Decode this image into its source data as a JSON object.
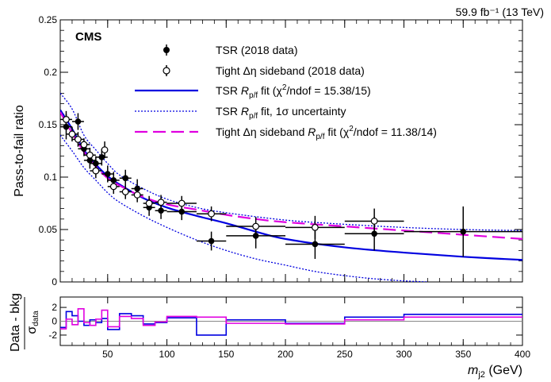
{
  "header": {
    "experiment": "CMS",
    "lumi": "59.9 fb⁻¹ (13 TeV)"
  },
  "colors": {
    "tsr_data": "#000000",
    "tsr_fit": "#0000e0",
    "sideband_fit": "#e000e0"
  },
  "chart_data": [
    {
      "type": "scatter",
      "xlabel": "m_j2 (GeV)",
      "ylabel": "Pass-to-fail ratio",
      "xlim": [
        10,
        400
      ],
      "ylim": [
        0,
        0.25
      ],
      "xticks": [
        50,
        100,
        150,
        200,
        250,
        300,
        350,
        400
      ],
      "yticks": [
        0,
        0.05,
        0.1,
        0.15,
        0.2,
        0.25
      ],
      "legend": {
        "placement": "top-right",
        "entries": [
          {
            "key": "tsr",
            "label": "TSR (2018 data)"
          },
          {
            "key": "sideband",
            "label": "Tight Δη sideband (2018 data)"
          },
          {
            "key": "tsr_fit",
            "label": "TSR R_p/f fit (χ²/ndof = 15.38/15)"
          },
          {
            "key": "tsr_unc",
            "label": "TSR R_p/f fit, 1σ uncertainty"
          },
          {
            "key": "sb_fit",
            "label": "Tight Δη sideband R_p/f fit (χ²/ndof = 11.38/14)"
          }
        ]
      },
      "series": [
        {
          "key": "tsr",
          "name": "TSR (2018 data)",
          "marker": "filled-circle",
          "points": [
            {
              "x": 15,
              "xerr": 5,
              "y": 0.148,
              "yerr": 0.012
            },
            {
              "x": 25,
              "xerr": 5,
              "y": 0.153,
              "yerr": 0.008
            },
            {
              "x": 30,
              "xerr": 5,
              "y": 0.127,
              "yerr": 0.007
            },
            {
              "x": 35,
              "xerr": 5,
              "y": 0.116,
              "yerr": 0.008
            },
            {
              "x": 40,
              "xerr": 5,
              "y": 0.113,
              "yerr": 0.007
            },
            {
              "x": 45,
              "xerr": 5,
              "y": 0.119,
              "yerr": 0.008
            },
            {
              "x": 50,
              "xerr": 5,
              "y": 0.103,
              "yerr": 0.008
            },
            {
              "x": 55,
              "xerr": 5,
              "y": 0.097,
              "yerr": 0.008
            },
            {
              "x": 65,
              "xerr": 5,
              "y": 0.099,
              "yerr": 0.008
            },
            {
              "x": 75,
              "xerr": 5,
              "y": 0.089,
              "yerr": 0.009
            },
            {
              "x": 85,
              "xerr": 5,
              "y": 0.071,
              "yerr": 0.008
            },
            {
              "x": 95,
              "xerr": 5,
              "y": 0.068,
              "yerr": 0.008
            },
            {
              "x": 112.5,
              "xerr": 12.5,
              "y": 0.067,
              "yerr": 0.008
            },
            {
              "x": 137.5,
              "xerr": 12.5,
              "y": 0.039,
              "yerr": 0.009
            },
            {
              "x": 175,
              "xerr": 25,
              "y": 0.044,
              "yerr": 0.012
            },
            {
              "x": 225,
              "xerr": 25,
              "y": 0.036,
              "yerr": 0.014
            },
            {
              "x": 275,
              "xerr": 25,
              "y": 0.046,
              "yerr": 0.016
            },
            {
              "x": 350,
              "xerr": 50,
              "y": 0.048,
              "yerr": 0.024
            }
          ]
        },
        {
          "key": "sideband",
          "name": "Tight Δη sideband (2018 data)",
          "marker": "open-circle",
          "points": [
            {
              "x": 15,
              "xerr": 5,
              "y": 0.155,
              "yerr": 0.008
            },
            {
              "x": 20,
              "xerr": 5,
              "y": 0.141,
              "yerr": 0.007
            },
            {
              "x": 25,
              "xerr": 5,
              "y": 0.136,
              "yerr": 0.007
            },
            {
              "x": 30,
              "xerr": 5,
              "y": 0.131,
              "yerr": 0.006
            },
            {
              "x": 35,
              "xerr": 5,
              "y": 0.121,
              "yerr": 0.007
            },
            {
              "x": 40,
              "xerr": 5,
              "y": 0.106,
              "yerr": 0.007
            },
            {
              "x": 47.5,
              "xerr": 2.5,
              "y": 0.126,
              "yerr": 0.008
            },
            {
              "x": 55,
              "xerr": 5,
              "y": 0.091,
              "yerr": 0.007
            },
            {
              "x": 65,
              "xerr": 5,
              "y": 0.086,
              "yerr": 0.007
            },
            {
              "x": 75,
              "xerr": 5,
              "y": 0.083,
              "yerr": 0.007
            },
            {
              "x": 85,
              "xerr": 5,
              "y": 0.075,
              "yerr": 0.007
            },
            {
              "x": 95,
              "xerr": 5,
              "y": 0.076,
              "yerr": 0.007
            },
            {
              "x": 112.5,
              "xerr": 12.5,
              "y": 0.075,
              "yerr": 0.007
            },
            {
              "x": 137.5,
              "xerr": 12.5,
              "y": 0.065,
              "yerr": 0.007
            },
            {
              "x": 175,
              "xerr": 25,
              "y": 0.053,
              "yerr": 0.009
            },
            {
              "x": 225,
              "xerr": 25,
              "y": 0.052,
              "yerr": 0.011
            },
            {
              "x": 275,
              "xerr": 25,
              "y": 0.058,
              "yerr": 0.012
            }
          ]
        },
        {
          "key": "tsr_fit",
          "name": "TSR R_p/f fit",
          "style": "solid",
          "x": [
            10,
            20,
            30,
            40,
            50,
            60,
            80,
            100,
            125,
            150,
            175,
            200,
            250,
            300,
            350,
            400
          ],
          "y": [
            0.164,
            0.146,
            0.126,
            0.112,
            0.101,
            0.093,
            0.08,
            0.071,
            0.063,
            0.056,
            0.048,
            0.041,
            0.033,
            0.028,
            0.024,
            0.021
          ]
        },
        {
          "key": "tsr_unc_up",
          "name": "TSR R_p/f fit, 1σ uncertainty",
          "style": "dotted",
          "x": [
            10,
            20,
            30,
            40,
            50,
            60,
            80,
            100,
            125,
            150,
            200,
            250,
            300,
            350,
            400
          ],
          "y": [
            0.18,
            0.165,
            0.14,
            0.126,
            0.113,
            0.102,
            0.089,
            0.079,
            0.071,
            0.066,
            0.059,
            0.055,
            0.052,
            0.05,
            0.049
          ]
        },
        {
          "key": "tsr_unc_down",
          "name": "TSR R_p/f fit, 1σ uncertainty",
          "style": "dotted",
          "x": [
            10,
            20,
            30,
            40,
            50,
            60,
            80,
            100,
            125,
            150,
            175,
            200,
            225,
            250,
            275,
            300,
            320
          ],
          "y": [
            0.14,
            0.125,
            0.109,
            0.097,
            0.085,
            0.076,
            0.063,
            0.052,
            0.04,
            0.03,
            0.022,
            0.016,
            0.01,
            0.006,
            0.003,
            0.001,
            0
          ]
        },
        {
          "key": "sb_fit",
          "name": "Tight Δη sideband R_p/f fit",
          "style": "dashed",
          "x": [
            10,
            20,
            30,
            40,
            50,
            60,
            80,
            100,
            125,
            150,
            175,
            200,
            250,
            300,
            350,
            400
          ],
          "y": [
            0.162,
            0.142,
            0.124,
            0.11,
            0.099,
            0.092,
            0.081,
            0.074,
            0.069,
            0.064,
            0.06,
            0.057,
            0.053,
            0.049,
            0.045,
            0.041
          ]
        }
      ]
    },
    {
      "type": "line",
      "xlabel": "m_j2 (GeV)",
      "ylabel": "Data - bkg / σ_data",
      "xlim": [
        10,
        400
      ],
      "ylim": [
        -3.5,
        3.5
      ],
      "xticks": [
        50,
        100,
        150,
        200,
        250,
        300,
        350,
        400
      ],
      "xticklabels": [
        "50",
        "100",
        "150",
        "200",
        "250",
        "300",
        "350",
        "400"
      ],
      "yticks": [
        -2,
        0,
        2
      ],
      "series": [
        {
          "key": "tsr_pull",
          "style": "step",
          "edges": [
            10,
            15,
            20,
            25,
            30,
            35,
            40,
            45,
            50,
            60,
            70,
            80,
            90,
            100,
            125,
            150,
            200,
            250,
            300,
            400
          ],
          "values": [
            -0.9,
            1.4,
            0.8,
            0.0,
            -0.6,
            0.2,
            -0.2,
            0.4,
            -1.2,
            1.1,
            0.8,
            -0.4,
            -0.2,
            0.5,
            -2.0,
            0.2,
            -0.3,
            0.6,
            1.0
          ]
        },
        {
          "key": "sb_pull",
          "style": "step",
          "edges": [
            10,
            15,
            20,
            25,
            30,
            35,
            40,
            45,
            50,
            60,
            70,
            80,
            90,
            100,
            125,
            150,
            200,
            250,
            300,
            400
          ],
          "values": [
            -1.1,
            0.3,
            -0.5,
            1.8,
            -0.2,
            -0.6,
            0.3,
            1.6,
            -0.8,
            0.7,
            0.4,
            -0.6,
            -0.1,
            0.7,
            0.6,
            -0.3,
            -0.4,
            0.2,
            0.6
          ]
        }
      ]
    }
  ]
}
